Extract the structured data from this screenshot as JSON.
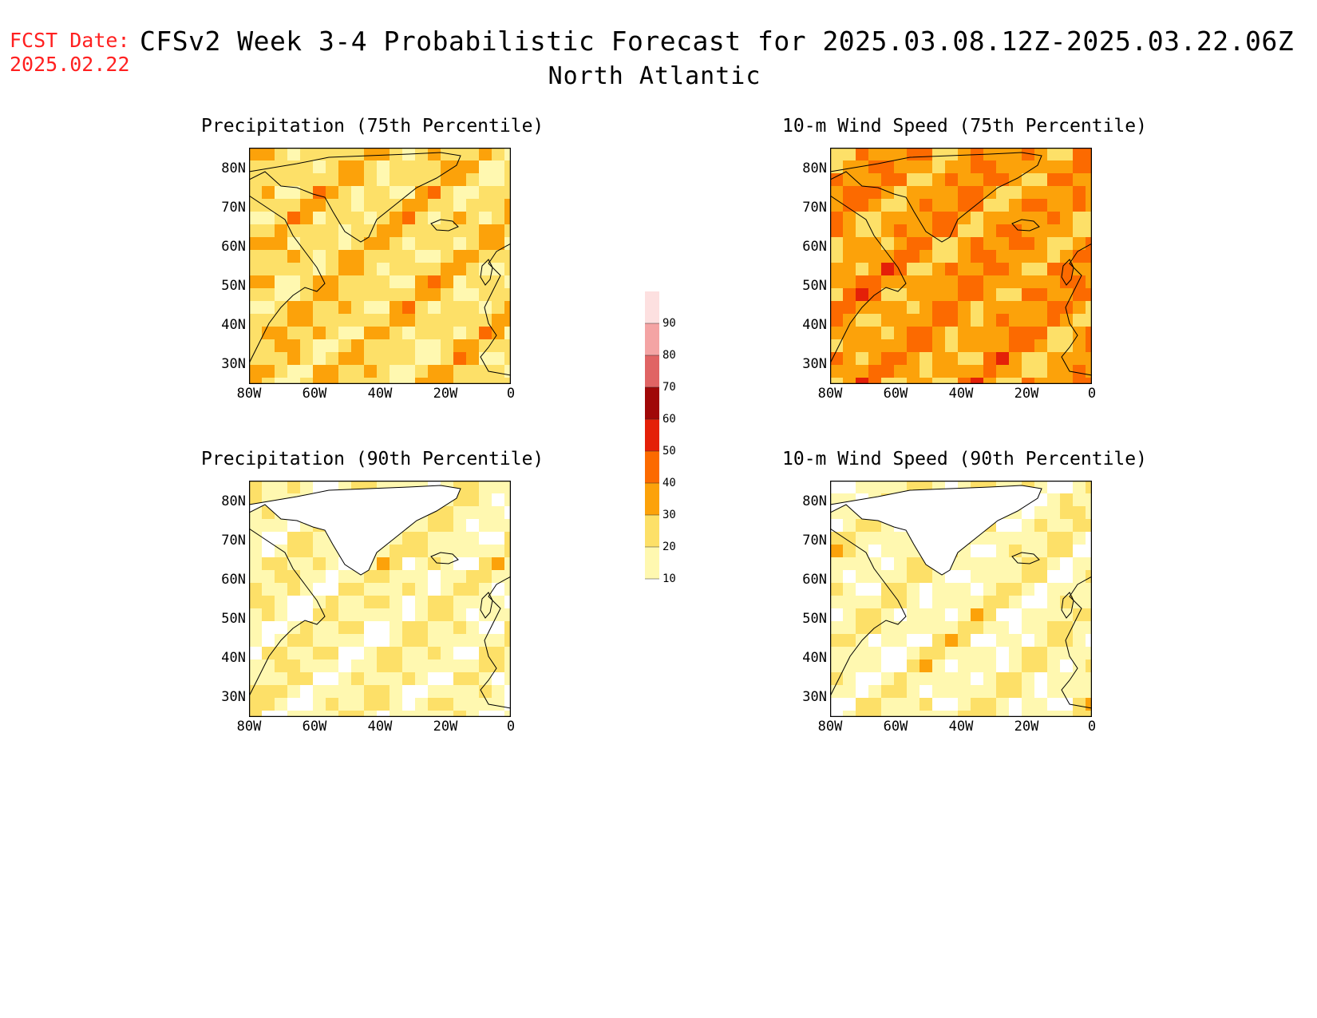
{
  "header": {
    "fcst_label": "FCST Date:",
    "fcst_date": "2025.02.22",
    "title": "CFSv2 Week 3-4 Probabilistic Forecast for 2025.03.08.12Z-2025.03.22.06Z",
    "region": "North Atlantic"
  },
  "panels": [
    {
      "title": "Precipitation (75th Percentile)",
      "level": 20
    },
    {
      "title": "10-m Wind Speed (75th Percentile)",
      "level": 30
    },
    {
      "title": "Precipitation (90th Percentile)",
      "level": 10
    },
    {
      "title": "10-m Wind Speed (90th Percentile)",
      "level": 10
    }
  ],
  "axes": {
    "lat_labels": [
      "80N",
      "70N",
      "60N",
      "50N",
      "40N",
      "30N"
    ],
    "lon_labels": [
      "80W",
      "60W",
      "40W",
      "20W",
      "0"
    ]
  },
  "colorbar": {
    "levels": [
      "10",
      "20",
      "30",
      "40",
      "50",
      "60",
      "70",
      "80",
      "90"
    ],
    "colors": [
      "#fff8b0",
      "#fde068",
      "#fca20a",
      "#fc6a00",
      "#e42008",
      "#a00808",
      "#e06464",
      "#f4a4a4",
      "#fde0e0"
    ]
  }
}
